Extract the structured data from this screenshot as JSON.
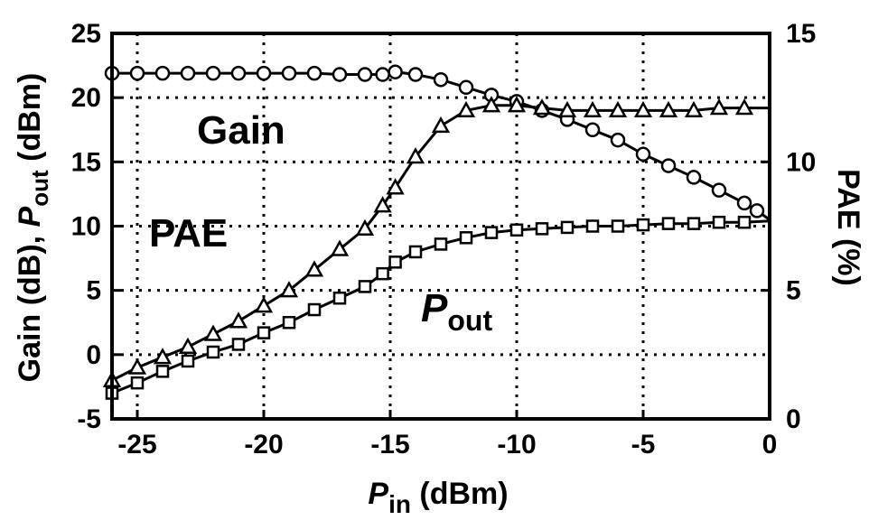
{
  "chart_data": {
    "type": "line",
    "xlabel": {
      "main": "P",
      "sub": "in",
      "unit": " (dBm)"
    },
    "ylabel_left": {
      "prefix": "Gain (dB), ",
      "main": "P",
      "sub": "out",
      "unit": " (dBm)"
    },
    "ylabel_right": "PAE (%)",
    "xlim": [
      -26,
      0
    ],
    "ylim_left": [
      -5,
      25
    ],
    "ylim_right": [
      0,
      15
    ],
    "x_ticks": [
      "-25",
      "-20",
      "-15",
      "-10",
      "-5",
      "0"
    ],
    "y_ticks_left": [
      "25",
      "20",
      "15",
      "10",
      "5",
      "0",
      "-5"
    ],
    "y_ticks_right": [
      "15",
      "10",
      "5",
      "0"
    ],
    "grid": true,
    "annotations": {
      "gain": "Gain",
      "pae": "PAE",
      "pout_main": "P",
      "pout_sub": "out"
    },
    "series": [
      {
        "name": "Gain",
        "axis": "left",
        "marker": "circle",
        "x": [
          -26,
          -25,
          -24,
          -23,
          -22,
          -21,
          -20,
          -19,
          -18,
          -17,
          -16,
          -15.3,
          -14.8,
          -14,
          -13,
          -12,
          -11,
          -10,
          -9,
          -8,
          -7,
          -6,
          -5,
          -4,
          -3,
          -2,
          -1,
          -0.5,
          0
        ],
        "y": [
          21.9,
          21.9,
          21.9,
          21.9,
          21.9,
          21.9,
          21.9,
          21.9,
          21.9,
          21.8,
          21.8,
          21.8,
          22.0,
          21.8,
          21.4,
          20.8,
          20.2,
          19.7,
          19.0,
          18.3,
          17.5,
          16.7,
          15.6,
          14.7,
          13.8,
          12.8,
          11.8,
          11.2,
          10.5
        ]
      },
      {
        "name": "PAE",
        "axis": "right",
        "marker": "triangle",
        "x": [
          -26,
          -25,
          -24,
          -23,
          -22,
          -21,
          -20,
          -19,
          -18,
          -17,
          -16,
          -15.3,
          -14.8,
          -14,
          -13,
          -12,
          -11,
          -10,
          -9,
          -8,
          -7,
          -6,
          -5,
          -4,
          -3,
          -2,
          -1,
          0
        ],
        "y": [
          1.5,
          2.0,
          2.4,
          2.8,
          3.3,
          3.8,
          4.4,
          5.0,
          5.8,
          6.6,
          7.4,
          8.3,
          9.0,
          10.2,
          11.4,
          12.0,
          12.2,
          12.2,
          12.1,
          12.0,
          12.0,
          12.0,
          12.0,
          12.0,
          12.0,
          12.1,
          12.1,
          12.1
        ]
      },
      {
        "name": "Pout",
        "axis": "left",
        "marker": "square",
        "x": [
          -26,
          -25,
          -24,
          -23,
          -22,
          -21,
          -20,
          -19,
          -18,
          -17,
          -16,
          -15.3,
          -14.8,
          -14,
          -13,
          -12,
          -11,
          -10,
          -9,
          -8,
          -7,
          -6,
          -5,
          -4,
          -3,
          -2,
          -1,
          0
        ],
        "y": [
          -3.0,
          -2.2,
          -1.3,
          -0.5,
          0.2,
          0.8,
          1.7,
          2.5,
          3.5,
          4.4,
          5.3,
          6.3,
          7.2,
          8.0,
          8.6,
          9.1,
          9.5,
          9.7,
          9.8,
          9.9,
          10.0,
          10.0,
          10.1,
          10.2,
          10.2,
          10.3,
          10.3,
          10.4
        ]
      }
    ]
  }
}
